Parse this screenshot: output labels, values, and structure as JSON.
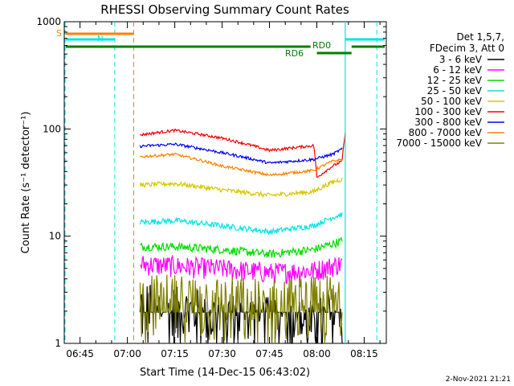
{
  "chart_data": {
    "type": "line",
    "title": "RHESSI Observing Summary Count Rates",
    "xlabel": "Start Time (14-Dec-15 06:43:02)",
    "ylabel": "Count Rate (s⁻¹ detector⁻¹)",
    "y_scale": "log",
    "ylim": [
      1,
      1000
    ],
    "xlim": [
      "06:40",
      "08:22"
    ],
    "x_ticks": [
      "06:45",
      "07:00",
      "07:15",
      "07:30",
      "07:45",
      "08:00",
      "08:15"
    ],
    "y_ticks": [
      "1",
      "10",
      "100",
      "1000"
    ],
    "footer_date": "2-Nov-2021 21:21",
    "legend_header": [
      "Det 1,5,7,",
      "FDecim 3, Att 0"
    ],
    "legend_position": "right",
    "series": [
      {
        "name": "3 - 6 keV",
        "color": "#000000",
        "x": [
          "07:04",
          "07:15",
          "07:30",
          "07:45",
          "07:59",
          "08:05",
          "08:08"
        ],
        "values": [
          2.3,
          2.0,
          1.8,
          1.6,
          1.5,
          1.8,
          1.9
        ]
      },
      {
        "name": "6 - 12 keV",
        "color": "#ff00ff",
        "x": [
          "07:04",
          "07:15",
          "07:30",
          "07:45",
          "07:59",
          "08:05",
          "08:08"
        ],
        "values": [
          5.5,
          5.3,
          5.0,
          4.6,
          4.8,
          5.3,
          5.6
        ]
      },
      {
        "name": "12 - 25 keV",
        "color": "#00dd00",
        "x": [
          "07:04",
          "07:15",
          "07:30",
          "07:45",
          "07:59",
          "08:05",
          "08:08"
        ],
        "values": [
          8.0,
          8.0,
          7.5,
          6.8,
          7.5,
          8.5,
          9.0
        ]
      },
      {
        "name": "25 - 50 keV",
        "color": "#00e5e5",
        "x": [
          "07:04",
          "07:15",
          "07:30",
          "07:45",
          "07:59",
          "08:05",
          "08:08"
        ],
        "values": [
          13.5,
          14.0,
          12.5,
          11.0,
          12.5,
          15.0,
          16.0
        ]
      },
      {
        "name": "50 - 100 keV",
        "color": "#d4c800",
        "x": [
          "07:04",
          "07:15",
          "07:30",
          "07:45",
          "07:59",
          "08:05",
          "08:08"
        ],
        "values": [
          30,
          31,
          27,
          24,
          26,
          32,
          34
        ]
      },
      {
        "name": "100 - 300 keV",
        "color": "#ff0000",
        "x": [
          "07:04",
          "07:15",
          "07:30",
          "07:45",
          "07:59",
          "08:00",
          "08:05",
          "08:08",
          "08:09"
        ],
        "values": [
          88,
          97,
          82,
          63,
          70,
          35,
          45,
          50,
          90
        ]
      },
      {
        "name": "300 - 800 keV",
        "color": "#0000ff",
        "x": [
          "07:04",
          "07:15",
          "07:30",
          "07:45",
          "07:59",
          "08:05",
          "08:08"
        ],
        "values": [
          69,
          72,
          60,
          48,
          52,
          58,
          65
        ]
      },
      {
        "name": "800 - 7000 keV",
        "color": "#ff8000",
        "x": [
          "07:04",
          "07:15",
          "07:30",
          "07:45",
          "07:59",
          "08:05",
          "08:08"
        ],
        "values": [
          55,
          58,
          45,
          37,
          41,
          50,
          52
        ]
      },
      {
        "name": "7000 - 15000 keV",
        "color": "#808000",
        "x": [
          "07:04",
          "07:15",
          "07:30",
          "07:45",
          "07:59",
          "08:05",
          "08:08"
        ],
        "values": [
          2.6,
          2.6,
          2.5,
          2.4,
          2.5,
          2.6,
          2.7
        ]
      }
    ],
    "annotations": [
      {
        "text": "S",
        "color": "#ff8000"
      },
      {
        "text": "N",
        "color": "#00e5e5"
      },
      {
        "text": "RD0",
        "color": "#007700"
      },
      {
        "text": "RD6",
        "color": "#007700"
      }
    ]
  }
}
